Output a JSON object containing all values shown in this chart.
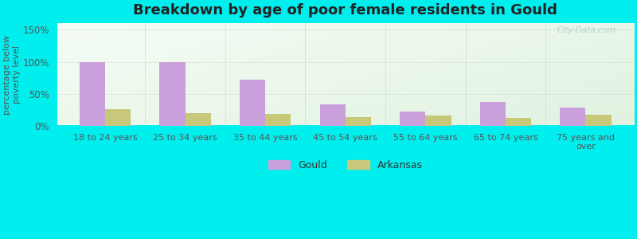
{
  "title": "Breakdown by age of poor female residents in Gould",
  "categories": [
    "18 to 24 years",
    "25 to 34 years",
    "35 to 44 years",
    "45 to 54 years",
    "55 to 64 years",
    "65 to 74 years",
    "75 years and\nover"
  ],
  "gould_values": [
    100,
    100,
    72,
    33,
    22,
    37,
    29
  ],
  "arkansas_values": [
    26,
    20,
    18,
    14,
    16,
    13,
    17
  ],
  "gould_color": "#c9a0dc",
  "arkansas_color": "#c8c87a",
  "ylabel": "percentage below\npoverty level",
  "ylim": [
    0,
    160
  ],
  "yticks": [
    0,
    50,
    100,
    150
  ],
  "ytick_labels": [
    "0%",
    "50%",
    "100%",
    "150%"
  ],
  "background_color": "#00eeee",
  "title_fontsize": 13,
  "legend_labels": [
    "Gould",
    "Arkansas"
  ],
  "watermark": "City-Data.com",
  "bar_width": 0.32
}
